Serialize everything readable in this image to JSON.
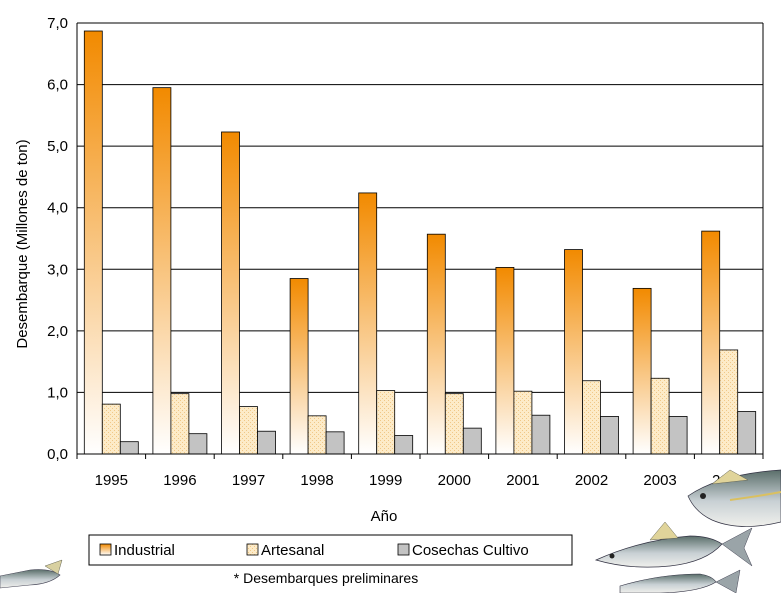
{
  "chart_data": {
    "type": "bar",
    "categories": [
      "1995",
      "1996",
      "1997",
      "1998",
      "1999",
      "2000",
      "2001",
      "2002",
      "2003",
      "2004"
    ],
    "category_sublabels": [
      "",
      "",
      "",
      "",
      "",
      "",
      "",
      "",
      "",
      "(*)"
    ],
    "series": [
      {
        "name": "Industrial",
        "values": [
          6.87,
          5.95,
          5.23,
          2.85,
          4.24,
          3.57,
          3.03,
          3.32,
          2.69,
          3.62
        ]
      },
      {
        "name": "Artesanal",
        "values": [
          0.81,
          0.98,
          0.77,
          0.62,
          1.03,
          0.98,
          1.02,
          1.19,
          1.23,
          1.69
        ]
      },
      {
        "name": "Cosechas Cultivo",
        "values": [
          0.2,
          0.33,
          0.37,
          0.36,
          0.3,
          0.42,
          0.63,
          0.61,
          0.61,
          0.69
        ]
      }
    ],
    "ylabel": "Desembarque (Millones de ton)",
    "xlabel": "Año",
    "ylim": [
      0,
      7
    ],
    "yticks": [
      "0,0",
      "1,0",
      "2,0",
      "3,0",
      "4,0",
      "5,0",
      "6,0",
      "7,0"
    ],
    "grid": true,
    "legend_position": "bottom",
    "note": "* Desembarques preliminares",
    "colors": {
      "industrial_top": "#f28a00",
      "industrial_bottom": "#ffffff",
      "artesanal_fill": "#fdebc8",
      "cultivo_fill": "#c3c3c3",
      "grid": "#000000",
      "fish_body": "#b8c0c8",
      "fish_fin": "#e8d890"
    }
  },
  "decorations": {
    "left_image": "fish-fragment-icon",
    "right_image": "fish-group-icon"
  }
}
